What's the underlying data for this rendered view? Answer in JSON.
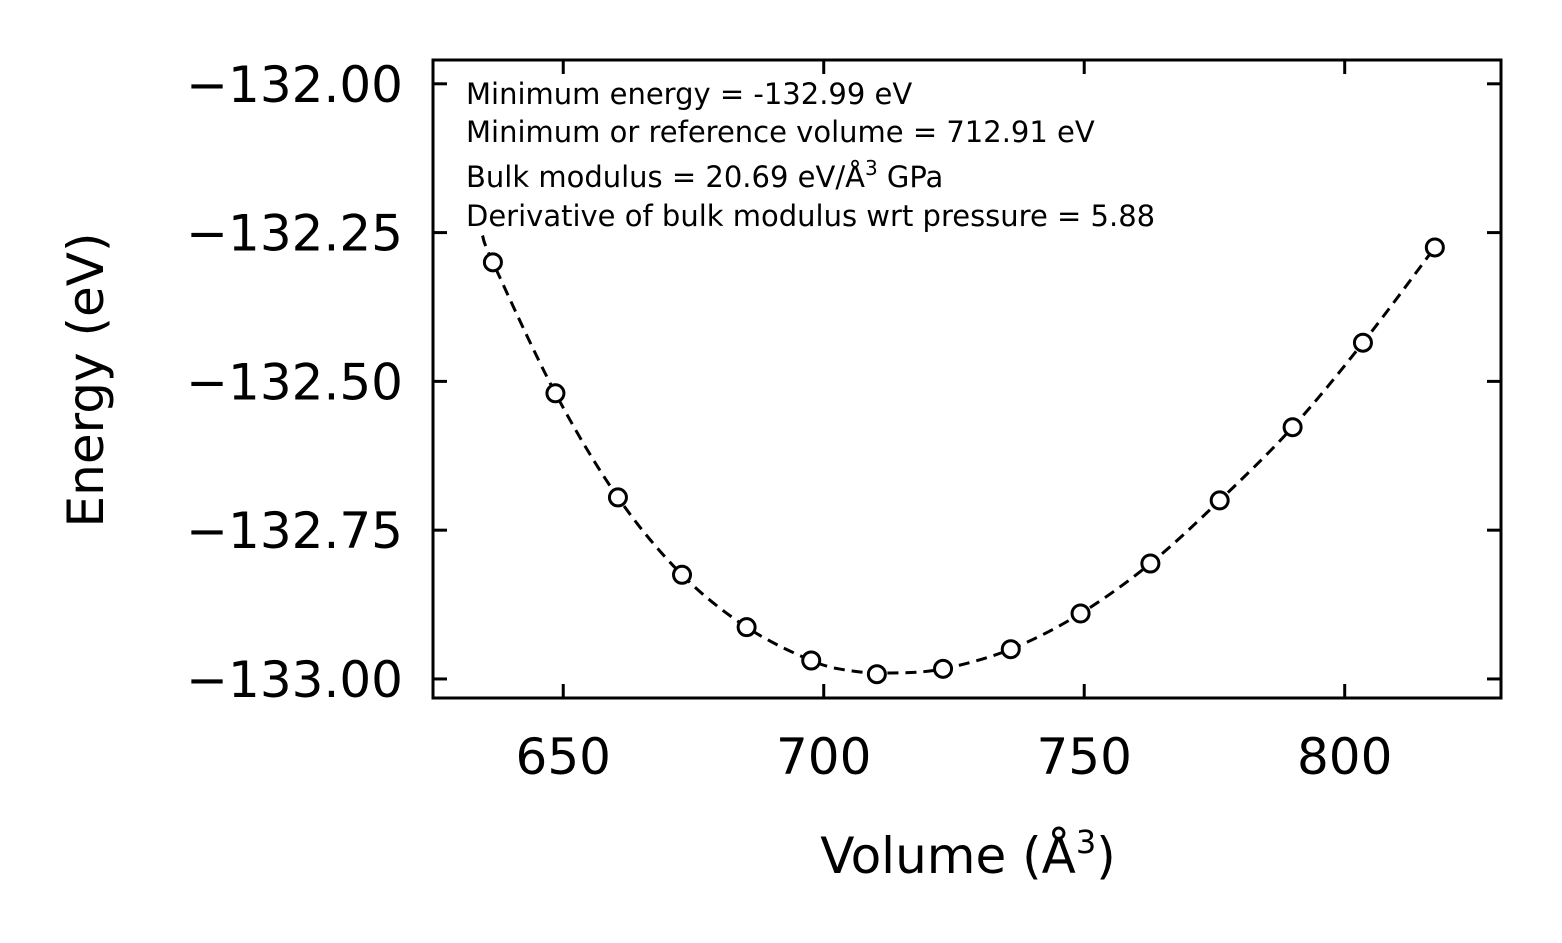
{
  "chart_data": {
    "type": "scatter",
    "title": "",
    "xlabel": "Volume (Å",
    "xlabel_sup": "3",
    "xlabel_close": ")",
    "ylabel": "Energy (eV)",
    "xlim": [
      625,
      830
    ],
    "ylim": [
      -133.032,
      -131.96
    ],
    "xticks": [
      650,
      700,
      750,
      800
    ],
    "xtick_labels": [
      "650",
      "700",
      "750",
      "800"
    ],
    "yticks": [
      -132.0,
      -132.25,
      -132.5,
      -132.75,
      -133.0
    ],
    "ytick_labels": [
      "−132.00",
      "−132.25",
      "−132.50",
      "−132.75",
      "−133.00"
    ],
    "series": [
      {
        "name": "data",
        "style": "open-circle",
        "x": [
          636.5,
          648.5,
          660.5,
          672.8,
          685.2,
          697.6,
          710.2,
          722.9,
          735.9,
          749.3,
          762.7,
          776.0,
          790.0,
          803.5,
          817.3
        ],
        "y": [
          -132.3,
          -132.52,
          -132.695,
          -132.825,
          -132.913,
          -132.969,
          -132.992,
          -132.983,
          -132.95,
          -132.89,
          -132.806,
          -132.7,
          -132.577,
          -132.435,
          -132.275
        ]
      },
      {
        "name": "fit",
        "style": "dashed-line",
        "x": [
          634.5,
          636.5,
          648.5,
          660.5,
          672.8,
          685.2,
          697.6,
          705.0,
          712.91,
          722.9,
          735.9,
          749.3,
          762.7,
          776.0,
          790.0,
          803.5,
          817.3
        ],
        "y": [
          -132.255,
          -132.3,
          -132.52,
          -132.695,
          -132.825,
          -132.913,
          -132.969,
          -132.986,
          -132.99,
          -132.983,
          -132.95,
          -132.89,
          -132.806,
          -132.7,
          -132.577,
          -132.435,
          -132.275
        ]
      }
    ],
    "annotations": [
      {
        "text": "Minimum energy = -132.99 eV"
      },
      {
        "text": "Minimum or reference volume = 712.91 eV"
      },
      {
        "text": "Bulk modulus = 20.69 eV/Å",
        "sup": "3",
        "suffix": " GPa"
      },
      {
        "text": "Derivative of bulk modulus wrt pressure = 5.88"
      }
    ],
    "grid": false,
    "legend": "none"
  }
}
